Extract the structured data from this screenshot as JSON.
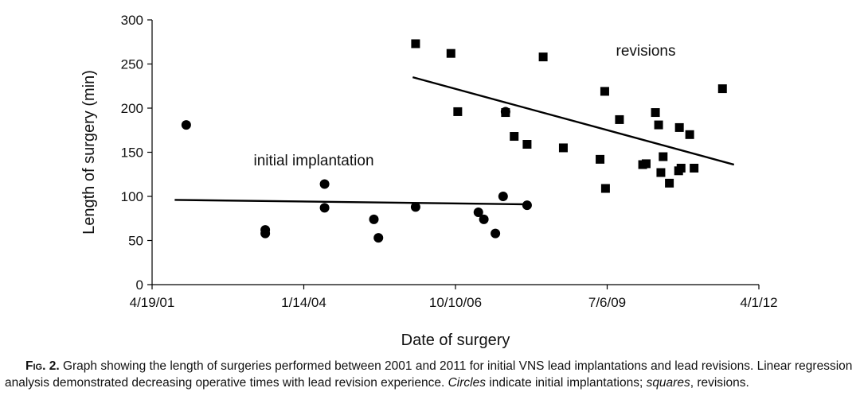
{
  "figure": {
    "label": "Fig. 2.",
    "caption_parts": [
      {
        "text": "Graph showing the length of surgeries performed between 2001 and 2011 for initial VNS lead implantations and lead revisions. Linear regression analysis demonstrated decreasing operative times with lead revision experience. ",
        "italic": false
      },
      {
        "text": "Circles",
        "italic": true
      },
      {
        "text": " indicate initial implantations; ",
        "italic": false
      },
      {
        "text": "squares",
        "italic": true
      },
      {
        "text": ", revisions.",
        "italic": false
      }
    ]
  },
  "chart_data": {
    "type": "scatter",
    "xlabel": "Date of surgery",
    "ylabel": "Length of surgery (min)",
    "xlim": [
      "2001-04-19",
      "2012-04-01"
    ],
    "ylim": [
      0,
      300
    ],
    "x_ticks": [
      "2001-04-19",
      "2004-01-14",
      "2006-10-10",
      "2009-07-06",
      "2012-04-01"
    ],
    "x_tick_labels": [
      "4/19/01",
      "1/14/04",
      "10/10/06",
      "7/6/09",
      "4/1/12"
    ],
    "y_ticks": [
      0,
      50,
      100,
      150,
      200,
      250,
      300
    ],
    "y_tick_labels": [
      "0",
      "50",
      "100",
      "150",
      "200",
      "250",
      "300"
    ],
    "grid": false,
    "legend": "none",
    "annotations": [
      {
        "text": "initial implantation",
        "series": "initial implantation"
      },
      {
        "text": "revisions",
        "series": "revisions"
      }
    ],
    "series": [
      {
        "name": "initial implantation",
        "marker": "circle",
        "color": "#000000",
        "points": [
          {
            "x": "2001-11-30",
            "y": 181
          },
          {
            "x": "2003-05-05",
            "y": 62
          },
          {
            "x": "2003-05-05",
            "y": 58
          },
          {
            "x": "2004-05-30",
            "y": 114
          },
          {
            "x": "2004-05-30",
            "y": 87
          },
          {
            "x": "2005-04-20",
            "y": 74
          },
          {
            "x": "2005-05-20",
            "y": 53
          },
          {
            "x": "2006-01-20",
            "y": 88
          },
          {
            "x": "2007-03-10",
            "y": 82
          },
          {
            "x": "2007-04-15",
            "y": 74
          },
          {
            "x": "2007-06-30",
            "y": 58
          },
          {
            "x": "2007-08-20",
            "y": 100
          },
          {
            "x": "2008-01-25",
            "y": 90
          },
          {
            "x": "2007-09-05",
            "y": 196
          }
        ],
        "regression": {
          "x": [
            "2001-09-15",
            "2008-01-30"
          ],
          "y": [
            96,
            91
          ]
        }
      },
      {
        "name": "revisions",
        "marker": "square",
        "color": "#000000",
        "points": [
          {
            "x": "2006-01-20",
            "y": 273
          },
          {
            "x": "2006-09-10",
            "y": 262
          },
          {
            "x": "2006-10-25",
            "y": 196
          },
          {
            "x": "2007-09-05",
            "y": 195
          },
          {
            "x": "2007-11-01",
            "y": 168
          },
          {
            "x": "2008-01-25",
            "y": 159
          },
          {
            "x": "2008-05-10",
            "y": 258
          },
          {
            "x": "2008-09-20",
            "y": 155
          },
          {
            "x": "2009-05-20",
            "y": 142
          },
          {
            "x": "2009-06-20",
            "y": 219
          },
          {
            "x": "2009-06-25",
            "y": 109
          },
          {
            "x": "2009-09-25",
            "y": 187
          },
          {
            "x": "2010-02-25",
            "y": 136
          },
          {
            "x": "2010-03-20",
            "y": 137
          },
          {
            "x": "2010-05-20",
            "y": 195
          },
          {
            "x": "2010-06-10",
            "y": 181
          },
          {
            "x": "2010-06-25",
            "y": 127
          },
          {
            "x": "2010-07-10",
            "y": 145
          },
          {
            "x": "2010-08-20",
            "y": 115
          },
          {
            "x": "2010-10-20",
            "y": 129
          },
          {
            "x": "2010-11-05",
            "y": 132
          },
          {
            "x": "2010-10-25",
            "y": 178
          },
          {
            "x": "2011-01-01",
            "y": 170
          },
          {
            "x": "2011-01-30",
            "y": 132
          },
          {
            "x": "2011-08-05",
            "y": 222
          }
        ],
        "regression": {
          "x": [
            "2006-01-01",
            "2011-10-20"
          ],
          "y": [
            235,
            136
          ]
        }
      }
    ]
  }
}
